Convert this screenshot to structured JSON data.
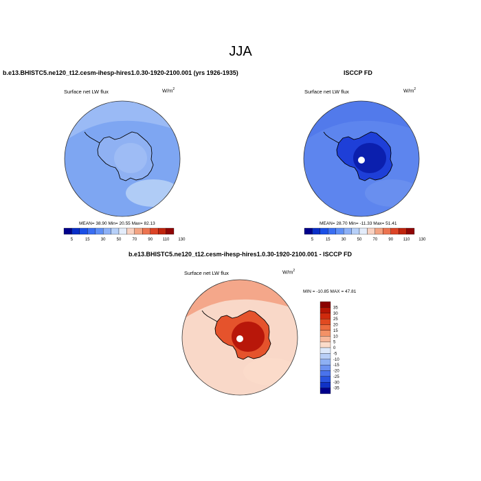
{
  "page": {
    "title": "JJA"
  },
  "panels": {
    "model": {
      "title": "b.e13.BHISTC5.ne120_t12.cesm-ihesp-hires1.0.30-1920-2100.001 (yrs 1926-1935)",
      "variable": "Surface net LW flux",
      "units_base": "W/m",
      "units_exp": "2",
      "stats": "MEAN=  38.90  Min=  20.55  Max=  82.13"
    },
    "obs": {
      "title": "ISCCP FD",
      "variable": "Surface net LW flux",
      "units_base": "W/m",
      "units_exp": "2",
      "stats": "MEAN=  28.70  Min= -11.33  Max=  51.41"
    },
    "diff": {
      "title": "b.e13.BHISTC5.ne120_t12.cesm-ihesp-hires1.0.30-1920-2100.001 - ISCCP FD",
      "variable": "Surface net LW flux",
      "units_base": "W/m",
      "units_exp": "2",
      "stats": "MIN = -10.85  MAX =  47.81"
    }
  },
  "colorbars": {
    "field": {
      "labels": [
        "5",
        "15",
        "30",
        "50",
        "70",
        "90",
        "110",
        "130"
      ],
      "colors": [
        "#00008b",
        "#0a2fc8",
        "#1a4fe6",
        "#3a6ef2",
        "#5f8ff5",
        "#8db1f7",
        "#b7d0f8",
        "#e3ecfa",
        "#f8d2c2",
        "#f3a483",
        "#ec7450",
        "#dc4427",
        "#c0250e",
        "#900606"
      ]
    },
    "diff": {
      "labels": [
        "35",
        "30",
        "25",
        "20",
        "15",
        "10",
        "5",
        "0",
        "-5",
        "-10",
        "-15",
        "-20",
        "-25",
        "-30",
        "-35"
      ],
      "colors": [
        "#8b0000",
        "#b51504",
        "#cf2a0d",
        "#e14a21",
        "#ec6c3f",
        "#f39166",
        "#f7b79a",
        "#fbdcca",
        "#dce8fa",
        "#b8cff7",
        "#8eb0f3",
        "#6c92f0",
        "#4a73ec",
        "#2a54e0",
        "#1032c6",
        "#00008b"
      ]
    }
  }
}
